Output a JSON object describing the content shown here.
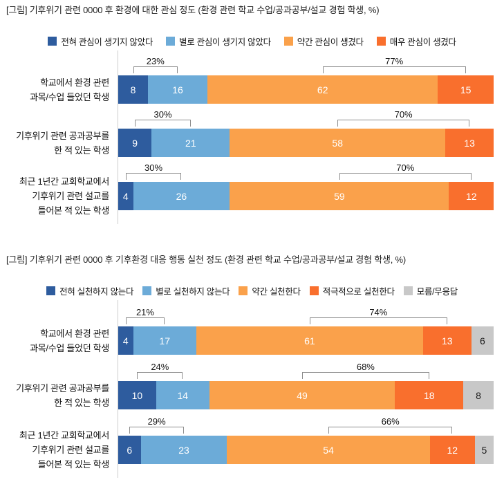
{
  "page": {
    "background": "#ffffff"
  },
  "colors": {
    "axis_line": "#cccccc",
    "bracket_line": "#8c8c8c",
    "title_text": "#1f1f1f",
    "label_text": "#111111"
  },
  "chart_data": [
    {
      "type": "bar",
      "orientation": "horizontal",
      "stacked": true,
      "unit": "%",
      "grid": false,
      "legend_position": "top",
      "title": "[그림] 기후위기 관련 0000 후 환경에 대한 관심 정도 (환경 관련 학교 수업/공과공부/설교 경험 학생, %)",
      "legend": [
        {
          "label": "전혀 관심이 생기지 않았다",
          "color": "#2e5c9e",
          "value_text_color": "#ffffff"
        },
        {
          "label": "별로 관심이 생기지 않았다",
          "color": "#6cabd8",
          "value_text_color": "#ffffff"
        },
        {
          "label": "약간 관심이 생겼다",
          "color": "#faa14b",
          "value_text_color": "#ffffff"
        },
        {
          "label": "매우 관심이 생겼다",
          "color": "#f96f2d",
          "value_text_color": "#ffffff"
        }
      ],
      "rows": [
        {
          "label_lines": [
            "학교에서 환경 관련",
            "과목/수업 들었던 학생"
          ],
          "values": [
            8,
            16,
            62,
            15
          ],
          "groups": [
            {
              "label": "23%",
              "from": 0,
              "to": 1
            },
            {
              "label": "77%",
              "from": 2,
              "to": 3
            }
          ]
        },
        {
          "label_lines": [
            "기후위기 관련 공과공부를",
            "한 적 있는 학생"
          ],
          "values": [
            9,
            21,
            58,
            13
          ],
          "groups": [
            {
              "label": "30%",
              "from": 0,
              "to": 1
            },
            {
              "label": "70%",
              "from": 2,
              "to": 3
            }
          ]
        },
        {
          "label_lines": [
            "최근 1년간 교회학교에서",
            "기후위기 관련 설교를",
            "들어본 적 있는 학생"
          ],
          "values": [
            4,
            26,
            59,
            12
          ],
          "groups": [
            {
              "label": "30%",
              "from": 0,
              "to": 1
            },
            {
              "label": "70%",
              "from": 2,
              "to": 3
            }
          ]
        }
      ]
    },
    {
      "type": "bar",
      "orientation": "horizontal",
      "stacked": true,
      "unit": "%",
      "grid": false,
      "legend_position": "top",
      "title": "[그림] 기후위기 관련 0000 후 기후환경 대응 행동 실천 정도 (환경 관련 학교 수업/공과공부/설교 경험 학생, %)",
      "legend": [
        {
          "label": "전혀 실천하지 않는다",
          "color": "#2e5c9e",
          "value_text_color": "#ffffff"
        },
        {
          "label": "별로 실천하지 않는다",
          "color": "#6cabd8",
          "value_text_color": "#ffffff"
        },
        {
          "label": "약간 실천한다",
          "color": "#faa14b",
          "value_text_color": "#ffffff"
        },
        {
          "label": "적극적으로 실천한다",
          "color": "#f96f2d",
          "value_text_color": "#ffffff"
        },
        {
          "label": "모름/무응답",
          "color": "#c8c8c8",
          "value_text_color": "#1a1a1a"
        }
      ],
      "rows": [
        {
          "label_lines": [
            "학교에서 환경 관련",
            "과목/수업 들었던 학생"
          ],
          "values": [
            4,
            17,
            61,
            13,
            6
          ],
          "groups": [
            {
              "label": "21%",
              "from": 0,
              "to": 1
            },
            {
              "label": "74%",
              "from": 2,
              "to": 3
            }
          ]
        },
        {
          "label_lines": [
            "기후위기 관련 공과공부를",
            "한 적 있는 학생"
          ],
          "values": [
            10,
            14,
            49,
            18,
            8
          ],
          "groups": [
            {
              "label": "24%",
              "from": 0,
              "to": 1
            },
            {
              "label": "68%",
              "from": 2,
              "to": 3
            }
          ]
        },
        {
          "label_lines": [
            "최근 1년간 교회학교에서",
            "기후위기 관련 설교를",
            "들어본 적 있는 학생"
          ],
          "values": [
            6,
            23,
            54,
            12,
            5
          ],
          "groups": [
            {
              "label": "29%",
              "from": 0,
              "to": 1
            },
            {
              "label": "66%",
              "from": 2,
              "to": 3
            }
          ]
        }
      ]
    }
  ]
}
